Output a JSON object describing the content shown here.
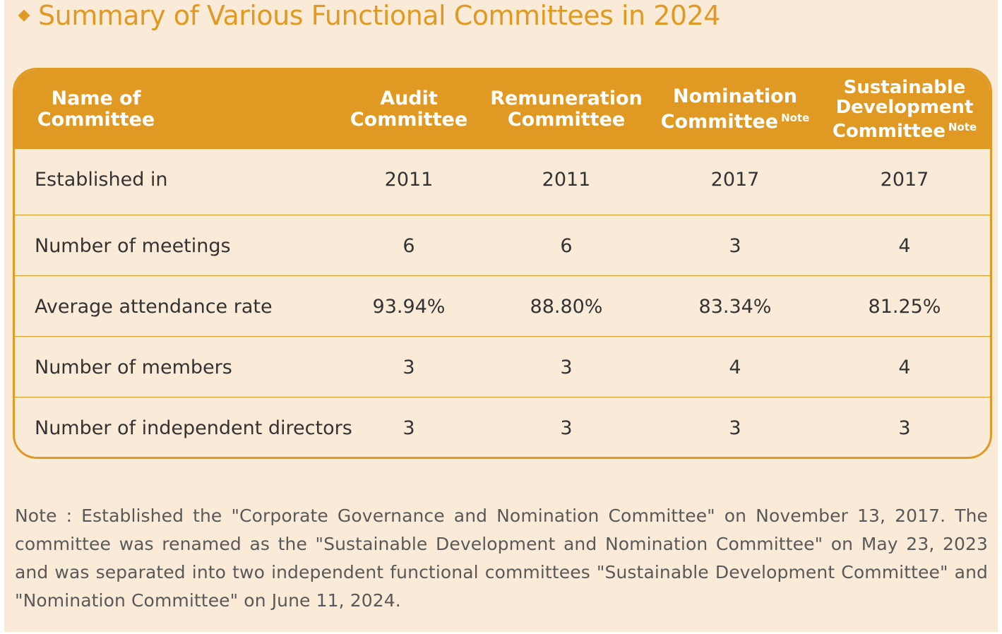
{
  "title": "Summary of Various Functional Committees in 2024",
  "table": {
    "header": {
      "name": [
        "Name of",
        "Committee"
      ],
      "audit": [
        "Audit",
        "Committee"
      ],
      "remuneration": [
        "Remuneration",
        "Committee"
      ],
      "nomination": [
        "Nomination",
        "Committee"
      ],
      "nomination_note": "Note",
      "sustainable": [
        "Sustainable",
        "Development",
        "Committee"
      ],
      "sustainable_note": "Note"
    },
    "rows": [
      {
        "label": "Established in",
        "values": [
          "2011",
          "2011",
          "2017",
          "2017"
        ]
      },
      {
        "label": "Number of meetings",
        "values": [
          "6",
          "6",
          "3",
          "4"
        ]
      },
      {
        "label": "Average attendance rate",
        "values": [
          "93.94%",
          "88.80%",
          "83.34%",
          "81.25%"
        ]
      },
      {
        "label": "Number of members",
        "values": [
          "3",
          "3",
          "4",
          "4"
        ]
      },
      {
        "label": "Number of independent directors",
        "values": [
          "3",
          "3",
          "3",
          "3"
        ]
      }
    ]
  },
  "note": "Note : Established the \"Corporate Governance and Nomination Committee\" on November 13, 2017. The committee was renamed as the \"Sustainable Development and Nomination Committee\" on May 23, 2023 and was separated into two independent functional committees \"Sustainable Development Committee\" and \"Nomination Committee\" on June 11, 2024.",
  "colors": {
    "accent": "#e09a24",
    "background": "#faebd8",
    "text": "#333333",
    "note_text": "#595959"
  },
  "icons": {
    "title_bullet": "diamond-icon"
  }
}
